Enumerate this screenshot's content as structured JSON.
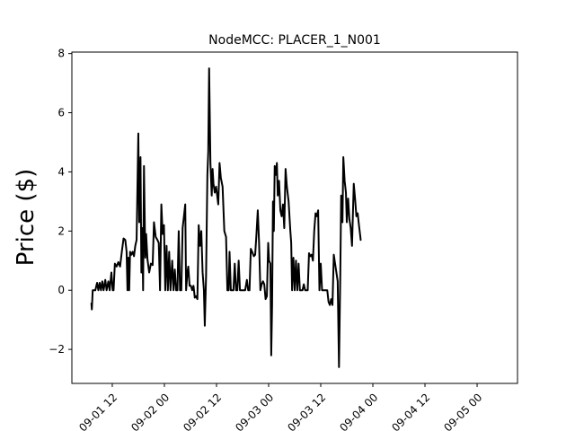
{
  "chart_data": {
    "type": "line",
    "title": "NodeMCC: PLACER_1_N001",
    "ylabel": "Price ($)",
    "xlabel": "",
    "x_tick_labels": [
      "09-01 12",
      "09-02 00",
      "09-02 12",
      "09-03 00",
      "09-03 12",
      "09-04 00",
      "09-04 12",
      "09-05 00"
    ],
    "y_tick_labels": [
      "−2",
      "0",
      "2",
      "4",
      "6",
      "8"
    ],
    "ylim": [
      -3.15,
      8.05
    ],
    "xlim_hours": [
      -9.3,
      93.3
    ],
    "y_ticks": [
      -2,
      0,
      2,
      4,
      6,
      8
    ],
    "x_tick_hours": [
      0,
      12,
      24,
      36,
      48,
      60,
      72,
      84
    ],
    "grid": false,
    "legend": "none",
    "line_color": "#000000",
    "series": [
      {
        "points": [
          [
            -4.8,
            -0.45
          ],
          [
            -4.7,
            -0.65
          ],
          [
            -4.5,
            0.0
          ],
          [
            -3.9,
            0.0
          ],
          [
            -3.5,
            0.25
          ],
          [
            -3.2,
            0.0
          ],
          [
            -2.9,
            0.25
          ],
          [
            -2.6,
            0.0
          ],
          [
            -2.3,
            0.3
          ],
          [
            -2.0,
            0.0
          ],
          [
            -1.6,
            0.35
          ],
          [
            -1.3,
            0.0
          ],
          [
            -0.9,
            0.3
          ],
          [
            -0.6,
            0.0
          ],
          [
            -0.2,
            0.6
          ],
          [
            0.1,
            0.0
          ],
          [
            0.3,
            0.0
          ],
          [
            0.6,
            0.9
          ],
          [
            1.0,
            0.8
          ],
          [
            1.4,
            0.95
          ],
          [
            1.8,
            0.8
          ],
          [
            2.2,
            1.3
          ],
          [
            2.6,
            1.75
          ],
          [
            3.0,
            1.7
          ],
          [
            3.3,
            1.3
          ],
          [
            3.5,
            0.0
          ],
          [
            3.7,
            1.1
          ],
          [
            3.9,
            0.0
          ],
          [
            4.1,
            1.3
          ],
          [
            4.4,
            1.2
          ],
          [
            4.7,
            1.3
          ],
          [
            5.0,
            1.15
          ],
          [
            5.3,
            1.5
          ],
          [
            5.6,
            1.7
          ],
          [
            6.0,
            5.3
          ],
          [
            6.2,
            2.3
          ],
          [
            6.5,
            4.5
          ],
          [
            6.7,
            0.6
          ],
          [
            6.9,
            2.1
          ],
          [
            7.1,
            0.0
          ],
          [
            7.3,
            4.2
          ],
          [
            7.6,
            1.1
          ],
          [
            7.8,
            1.9
          ],
          [
            8.1,
            1.05
          ],
          [
            8.5,
            0.6
          ],
          [
            8.9,
            0.9
          ],
          [
            9.3,
            0.85
          ],
          [
            9.6,
            2.3
          ],
          [
            10.0,
            1.8
          ],
          [
            10.4,
            1.7
          ],
          [
            10.7,
            1.6
          ],
          [
            11.0,
            0.0
          ],
          [
            11.3,
            2.9
          ],
          [
            11.6,
            1.9
          ],
          [
            11.9,
            2.2
          ],
          [
            12.2,
            0.0
          ],
          [
            12.5,
            1.5
          ],
          [
            12.8,
            0.0
          ],
          [
            13.1,
            1.3
          ],
          [
            13.4,
            0.0
          ],
          [
            13.8,
            1.0
          ],
          [
            14.1,
            0.0
          ],
          [
            14.4,
            0.7
          ],
          [
            14.7,
            0.0
          ],
          [
            15.0,
            0.0
          ],
          [
            15.3,
            2.0
          ],
          [
            15.6,
            0.0
          ],
          [
            15.9,
            0.0
          ],
          [
            16.2,
            2.1
          ],
          [
            16.5,
            2.5
          ],
          [
            16.8,
            2.9
          ],
          [
            17.0,
            0.0
          ],
          [
            17.3,
            0.6
          ],
          [
            17.5,
            0.8
          ],
          [
            17.8,
            0.15
          ],
          [
            18.1,
            0.15
          ],
          [
            18.4,
            0.0
          ],
          [
            18.7,
            0.15
          ],
          [
            19.0,
            -0.25
          ],
          [
            19.3,
            -0.2
          ],
          [
            19.6,
            -0.3
          ],
          [
            19.9,
            2.2
          ],
          [
            20.2,
            1.5
          ],
          [
            20.5,
            2.0
          ],
          [
            20.8,
            0.6
          ],
          [
            21.1,
            0.0
          ],
          [
            21.3,
            -1.2
          ],
          [
            21.6,
            0.5
          ],
          [
            21.9,
            3.9
          ],
          [
            22.1,
            4.7
          ],
          [
            22.3,
            7.5
          ],
          [
            22.6,
            4.3
          ],
          [
            22.9,
            3.2
          ],
          [
            23.1,
            4.1
          ],
          [
            23.3,
            3.6
          ],
          [
            23.6,
            3.3
          ],
          [
            23.9,
            3.5
          ],
          [
            24.2,
            3.15
          ],
          [
            24.4,
            2.9
          ],
          [
            24.7,
            4.3
          ],
          [
            25.0,
            3.8
          ],
          [
            25.4,
            3.5
          ],
          [
            25.8,
            2.0
          ],
          [
            26.2,
            1.8
          ],
          [
            26.5,
            0.0
          ],
          [
            26.8,
            0.0
          ],
          [
            27.0,
            1.3
          ],
          [
            27.3,
            0.0
          ],
          [
            27.6,
            0.0
          ],
          [
            27.9,
            0.0
          ],
          [
            28.2,
            0.9
          ],
          [
            28.5,
            0.0
          ],
          [
            28.8,
            0.0
          ],
          [
            29.1,
            1.0
          ],
          [
            29.4,
            0.0
          ],
          [
            29.7,
            0.0
          ],
          [
            30.0,
            0.0
          ],
          [
            30.3,
            0.0
          ],
          [
            30.6,
            0.0
          ],
          [
            31.0,
            0.35
          ],
          [
            31.3,
            0.0
          ],
          [
            31.6,
            0.0
          ],
          [
            31.9,
            1.4
          ],
          [
            32.2,
            1.3
          ],
          [
            32.6,
            1.15
          ],
          [
            32.9,
            1.2
          ],
          [
            33.2,
            1.9
          ],
          [
            33.5,
            2.7
          ],
          [
            33.8,
            1.6
          ],
          [
            34.1,
            0.0
          ],
          [
            34.4,
            0.2
          ],
          [
            34.7,
            0.3
          ],
          [
            35.0,
            0.2
          ],
          [
            35.3,
            -0.3
          ],
          [
            35.6,
            -0.2
          ],
          [
            35.9,
            1.6
          ],
          [
            36.1,
            1.0
          ],
          [
            36.4,
            0.9
          ],
          [
            36.6,
            -2.2
          ],
          [
            36.8,
            -0.5
          ],
          [
            37.0,
            3.0
          ],
          [
            37.2,
            2.0
          ],
          [
            37.4,
            4.2
          ],
          [
            37.7,
            3.9
          ],
          [
            37.9,
            4.3
          ],
          [
            38.1,
            3.2
          ],
          [
            38.4,
            3.7
          ],
          [
            38.7,
            2.7
          ],
          [
            39.0,
            2.5
          ],
          [
            39.3,
            2.9
          ],
          [
            39.6,
            2.1
          ],
          [
            39.9,
            4.1
          ],
          [
            40.2,
            3.5
          ],
          [
            40.6,
            3.0
          ],
          [
            41.0,
            2.0
          ],
          [
            41.2,
            1.6
          ],
          [
            41.4,
            0.0
          ],
          [
            41.7,
            1.1
          ],
          [
            42.0,
            0.0
          ],
          [
            42.3,
            1.0
          ],
          [
            42.6,
            0.0
          ],
          [
            42.9,
            0.9
          ],
          [
            43.2,
            0.0
          ],
          [
            43.5,
            0.0
          ],
          [
            43.8,
            0.0
          ],
          [
            44.1,
            0.2
          ],
          [
            44.4,
            0.0
          ],
          [
            44.7,
            0.0
          ],
          [
            45.0,
            0.0
          ],
          [
            45.3,
            1.25
          ],
          [
            45.6,
            1.15
          ],
          [
            45.9,
            1.2
          ],
          [
            46.2,
            1.0
          ],
          [
            46.5,
            2.0
          ],
          [
            46.8,
            2.6
          ],
          [
            47.1,
            2.5
          ],
          [
            47.4,
            2.7
          ],
          [
            47.7,
            0.0
          ],
          [
            48.0,
            0.9
          ],
          [
            48.3,
            0.0
          ],
          [
            48.6,
            0.0
          ],
          [
            48.9,
            0.0
          ],
          [
            49.2,
            0.0
          ],
          [
            49.5,
            0.0
          ],
          [
            49.8,
            -0.4
          ],
          [
            50.1,
            -0.5
          ],
          [
            50.4,
            -0.3
          ],
          [
            50.7,
            -0.5
          ],
          [
            51.0,
            1.2
          ],
          [
            51.3,
            0.9
          ],
          [
            51.6,
            0.6
          ],
          [
            51.9,
            0.3
          ],
          [
            52.2,
            -2.6
          ],
          [
            52.5,
            0.5
          ],
          [
            52.7,
            3.2
          ],
          [
            53.0,
            2.3
          ],
          [
            53.2,
            4.5
          ],
          [
            53.5,
            3.7
          ],
          [
            53.8,
            3.3
          ],
          [
            54.0,
            2.3
          ],
          [
            54.3,
            3.1
          ],
          [
            54.6,
            2.4
          ],
          [
            54.9,
            2.1
          ],
          [
            55.2,
            1.5
          ],
          [
            55.6,
            3.6
          ],
          [
            55.9,
            3.1
          ],
          [
            56.2,
            2.5
          ],
          [
            56.5,
            2.6
          ],
          [
            56.8,
            2.2
          ],
          [
            57.2,
            1.7
          ]
        ]
      }
    ]
  }
}
